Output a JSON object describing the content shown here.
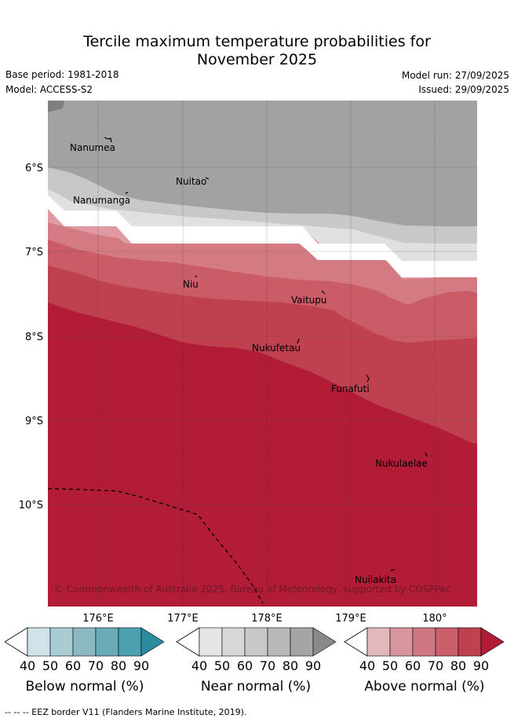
{
  "title": {
    "line1": "Tercile maximum temperature probabilities for",
    "line2": "November 2025"
  },
  "meta": {
    "base_period": "Base period: 1981-2018",
    "model": "Model: ACCESS-S2",
    "model_run": "Model run: 27/09/2025",
    "issued": "Issued: 29/09/2025"
  },
  "map": {
    "lat_labels": [
      "6°S",
      "7°S",
      "8°S",
      "9°S",
      "10°S"
    ],
    "lon_labels": [
      "176°E",
      "177°E",
      "178°E",
      "179°E",
      "180°"
    ],
    "places": [
      "Nanumea",
      "Nuitao",
      "Nanumanga",
      "Niu",
      "Vaitupu",
      "Nukufetau",
      "Funafuti",
      "Nukulaelae",
      "Nuilakita"
    ],
    "copyright": "© Commonwealth of Australia 2025, Bureau of Meteorology, supported by COSPPac",
    "colors": {
      "near_90": "#a2a2a2",
      "near_60": "#c8c8c8",
      "above_40": "#df9ba1",
      "above_50": "#d47a82",
      "above_60": "#c95c67",
      "above_70": "#bf4150",
      "above_80": "#b21c37"
    }
  },
  "colorbars": {
    "ticks": [
      "40",
      "50",
      "60",
      "70",
      "80",
      "90"
    ],
    "below": {
      "label": "Below normal (%)",
      "colors": [
        "#cfe3e8",
        "#a9cbd2",
        "#8ab9c4",
        "#6aabb8",
        "#4ba1b0",
        "#2a8c9e"
      ]
    },
    "near": {
      "label": "Near normal (%)",
      "colors": [
        "#e6e6e6",
        "#d8d8d8",
        "#c8c8c8",
        "#b8b8b8",
        "#a5a5a5",
        "#8a8a8a"
      ]
    },
    "above": {
      "label": "Above normal (%)",
      "colors": [
        "#e2b8bd",
        "#d8959d",
        "#cf7883",
        "#c85f6b",
        "#bf4150",
        "#b21c37"
      ]
    }
  },
  "footer": "--  --  -- EEZ border V11 (Flanders Marine Institute, 2019)."
}
